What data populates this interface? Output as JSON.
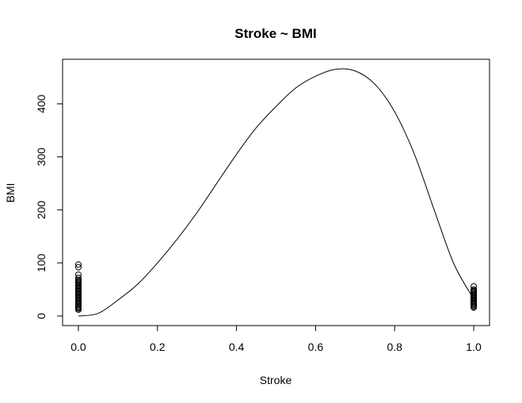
{
  "chart_data": {
    "type": "scatter",
    "title": "Stroke ~ BMI",
    "xlabel": "Stroke",
    "ylabel": "BMI",
    "xlim": [
      -0.04,
      1.04
    ],
    "ylim": [
      -18,
      484
    ],
    "x_ticks": [
      "0.0",
      "0.2",
      "0.4",
      "0.6",
      "0.8",
      "1.0"
    ],
    "y_ticks": [
      "0",
      "100",
      "200",
      "300",
      "400"
    ],
    "grid": false,
    "legend": "none",
    "series": [
      {
        "kind": "points",
        "marker": "open-circle",
        "points": [
          [
            0,
            97
          ],
          [
            0,
            92
          ],
          [
            0,
            78
          ],
          [
            0,
            72
          ],
          [
            0,
            68
          ],
          [
            0,
            66
          ],
          [
            0,
            64
          ],
          [
            0,
            62
          ],
          [
            0,
            60
          ],
          [
            0,
            58
          ],
          [
            0,
            56
          ],
          [
            0,
            54
          ],
          [
            0,
            52
          ],
          [
            0,
            50
          ],
          [
            0,
            48
          ],
          [
            0,
            46
          ],
          [
            0,
            44
          ],
          [
            0,
            42
          ],
          [
            0,
            40
          ],
          [
            0,
            38
          ],
          [
            0,
            36
          ],
          [
            0,
            34
          ],
          [
            0,
            32
          ],
          [
            0,
            30
          ],
          [
            0,
            28
          ],
          [
            0,
            26
          ],
          [
            0,
            24
          ],
          [
            0,
            22
          ],
          [
            0,
            20
          ],
          [
            0,
            18
          ],
          [
            0,
            16
          ],
          [
            0,
            14
          ],
          [
            0,
            12
          ],
          [
            1,
            56
          ],
          [
            1,
            50
          ],
          [
            1,
            48
          ],
          [
            1,
            46
          ],
          [
            1,
            44
          ],
          [
            1,
            42
          ],
          [
            1,
            40
          ],
          [
            1,
            38
          ],
          [
            1,
            36
          ],
          [
            1,
            34
          ],
          [
            1,
            32
          ],
          [
            1,
            30
          ],
          [
            1,
            28
          ],
          [
            1,
            26
          ],
          [
            1,
            24
          ],
          [
            1,
            22
          ],
          [
            1,
            20
          ],
          [
            1,
            18
          ],
          [
            1,
            16
          ]
        ]
      },
      {
        "kind": "line",
        "x": [
          0.0,
          0.05,
          0.1,
          0.15,
          0.2,
          0.25,
          0.3,
          0.35,
          0.4,
          0.45,
          0.5,
          0.55,
          0.6,
          0.65,
          0.7,
          0.75,
          0.8,
          0.85,
          0.9,
          0.95,
          1.0
        ],
        "y": [
          0,
          5,
          30,
          60,
          100,
          145,
          195,
          250,
          305,
          355,
          395,
          430,
          452,
          465,
          462,
          437,
          385,
          305,
          200,
          98,
          32
        ]
      }
    ]
  }
}
